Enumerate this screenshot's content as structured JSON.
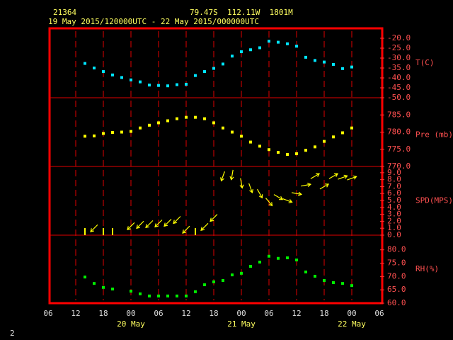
{
  "header": {
    "station": "21364",
    "location": "79.47S  112.11W  1801M",
    "period": "19 May 2015/120000UTC - 22 May 2015/000000UTC"
  },
  "footer": "2",
  "chart_data": [
    {
      "type": "scatter",
      "ylabel": "T(C)",
      "color": "#00e5ff",
      "x": [
        14,
        16,
        18,
        20,
        22,
        24,
        26,
        28,
        30,
        32,
        34,
        36,
        38,
        40,
        42,
        44,
        46,
        48,
        50,
        52,
        54,
        56,
        58,
        60,
        62,
        64,
        66,
        68,
        70,
        72
      ],
      "values": [
        -32.7,
        -35,
        -36.8,
        -38.5,
        -39.8,
        -41,
        -42,
        -43.6,
        -43.8,
        -44,
        -43.4,
        -43.2,
        -38.8,
        -36.8,
        -35.2,
        -33,
        -29,
        -26.8,
        -25.8,
        -24.8,
        -21.5,
        -22,
        -22.8,
        -24,
        -29.6,
        -31.2,
        -32,
        -33.2,
        -35.3,
        -34.5
      ],
      "ylim": [
        -50,
        -15
      ],
      "yticks": [
        {
          "value": -20,
          "label": "-20.0"
        },
        {
          "value": -25,
          "label": "-25.0"
        },
        {
          "value": -30,
          "label": "-30.0"
        },
        {
          "value": -35,
          "label": "-35.0"
        },
        {
          "value": -40,
          "label": "-40.0"
        },
        {
          "value": -45,
          "label": "-45.0"
        },
        {
          "value": -50,
          "label": "-50.0"
        }
      ]
    },
    {
      "type": "scatter",
      "ylabel": "Pre (mb)",
      "color": "#ffff00",
      "x": [
        14,
        16,
        18,
        20,
        22,
        24,
        26,
        28,
        30,
        32,
        34,
        36,
        38,
        40,
        42,
        44,
        46,
        48,
        50,
        52,
        54,
        56,
        58,
        60,
        62,
        64,
        66,
        68,
        70,
        72
      ],
      "values": [
        778.8,
        778.9,
        779.6,
        779.9,
        780,
        780.2,
        781.2,
        782,
        782.7,
        783.3,
        783.9,
        784.3,
        784.3,
        783.9,
        782.7,
        781.2,
        780,
        778.8,
        777.1,
        775.9,
        774.9,
        774.1,
        773.5,
        773.7,
        774.7,
        775.7,
        777.3,
        778.6,
        779.8,
        781.2
      ],
      "ylim": [
        770,
        790
      ],
      "yticks": [
        {
          "value": 785,
          "label": "785.0"
        },
        {
          "value": 780,
          "label": "780.0"
        },
        {
          "value": 775,
          "label": "775.0"
        },
        {
          "value": 770,
          "label": "770.0"
        }
      ]
    },
    {
      "type": "wind",
      "ylabel": "SPD(MPS)",
      "color": "#ffff00",
      "x": [
        14,
        16,
        18,
        20,
        22,
        24,
        26,
        28,
        30,
        32,
        34,
        36,
        38,
        40,
        42,
        44,
        46,
        48,
        50,
        52,
        54,
        56,
        58,
        60,
        62,
        64,
        66,
        68,
        70,
        72
      ],
      "values": [
        0,
        1.0,
        0,
        0,
        null,
        1.3,
        1.5,
        1.6,
        1.7,
        1.8,
        2.2,
        0.8,
        0,
        1.2,
        2.5,
        8.5,
        8.7,
        7.5,
        6.8,
        6.0,
        4.8,
        5.5,
        5.0,
        6.0,
        7.2,
        8.5,
        7.0,
        8.5,
        8.3,
        8.2
      ],
      "directions": [
        null,
        45,
        null,
        null,
        null,
        45,
        45,
        45,
        45,
        45,
        45,
        45,
        null,
        45,
        45,
        20,
        10,
        350,
        340,
        330,
        320,
        300,
        290,
        280,
        260,
        240,
        240,
        240,
        250,
        250
      ],
      "ylim": [
        0,
        9.9
      ],
      "yticks": [
        {
          "value": 9,
          "label": "9.0"
        },
        {
          "value": 8,
          "label": "8.0"
        },
        {
          "value": 7,
          "label": "7.0"
        },
        {
          "value": 6,
          "label": "6.0"
        },
        {
          "value": 5,
          "label": "5.0"
        },
        {
          "value": 4,
          "label": "4.0"
        },
        {
          "value": 3,
          "label": "3.0"
        },
        {
          "value": 2,
          "label": "2.0"
        },
        {
          "value": 1,
          "label": "1.0"
        },
        {
          "value": 0,
          "label": "0.0"
        }
      ]
    },
    {
      "type": "scatter",
      "ylabel": "RH(%)",
      "color": "#00ee00",
      "x": [
        14,
        16,
        18,
        20,
        22,
        24,
        26,
        28,
        30,
        32,
        34,
        36,
        38,
        40,
        42,
        44,
        46,
        48,
        50,
        52,
        54,
        56,
        58,
        60,
        62,
        64,
        66,
        68,
        70,
        72
      ],
      "values": [
        69.8,
        67.4,
        65.9,
        65.3,
        null,
        64.5,
        63.5,
        62.7,
        62.7,
        62.7,
        62.7,
        62.7,
        64.3,
        66.9,
        68,
        68.5,
        70.6,
        71.2,
        73.8,
        75.4,
        77.6,
        76.8,
        77,
        76.2,
        71.7,
        70.1,
        68.5,
        67.7,
        67.4,
        66.6
      ],
      "ylim": [
        60,
        85.5
      ],
      "yticks": [
        {
          "value": 80,
          "label": "80.0"
        },
        {
          "value": 75,
          "label": "75.0"
        },
        {
          "value": 70,
          "label": "70.0"
        },
        {
          "value": 65,
          "label": "65.0"
        },
        {
          "value": 60,
          "label": "60.0"
        }
      ],
      "xlim": [
        6,
        78
      ],
      "xticks": [
        {
          "value": 6,
          "label": "06"
        },
        12,
        18,
        {
          "value": 24,
          "label": "00"
        },
        {
          "value": 30,
          "label": "06"
        },
        {
          "value": 36,
          "label": "12"
        },
        {
          "value": 42,
          "label": "18"
        },
        {
          "value": 48,
          "label": "00"
        },
        {
          "value": 54,
          "label": "06"
        },
        {
          "value": 60,
          "label": "12"
        },
        {
          "value": 66,
          "label": "18"
        },
        {
          "value": 72,
          "label": "00"
        },
        {
          "value": 78,
          "label": "06"
        }
      ],
      "date_labels": [
        {
          "value": 24,
          "label": "20 May"
        },
        {
          "value": 48,
          "label": "21 May"
        },
        {
          "value": 72,
          "label": "22 May"
        }
      ]
    }
  ]
}
